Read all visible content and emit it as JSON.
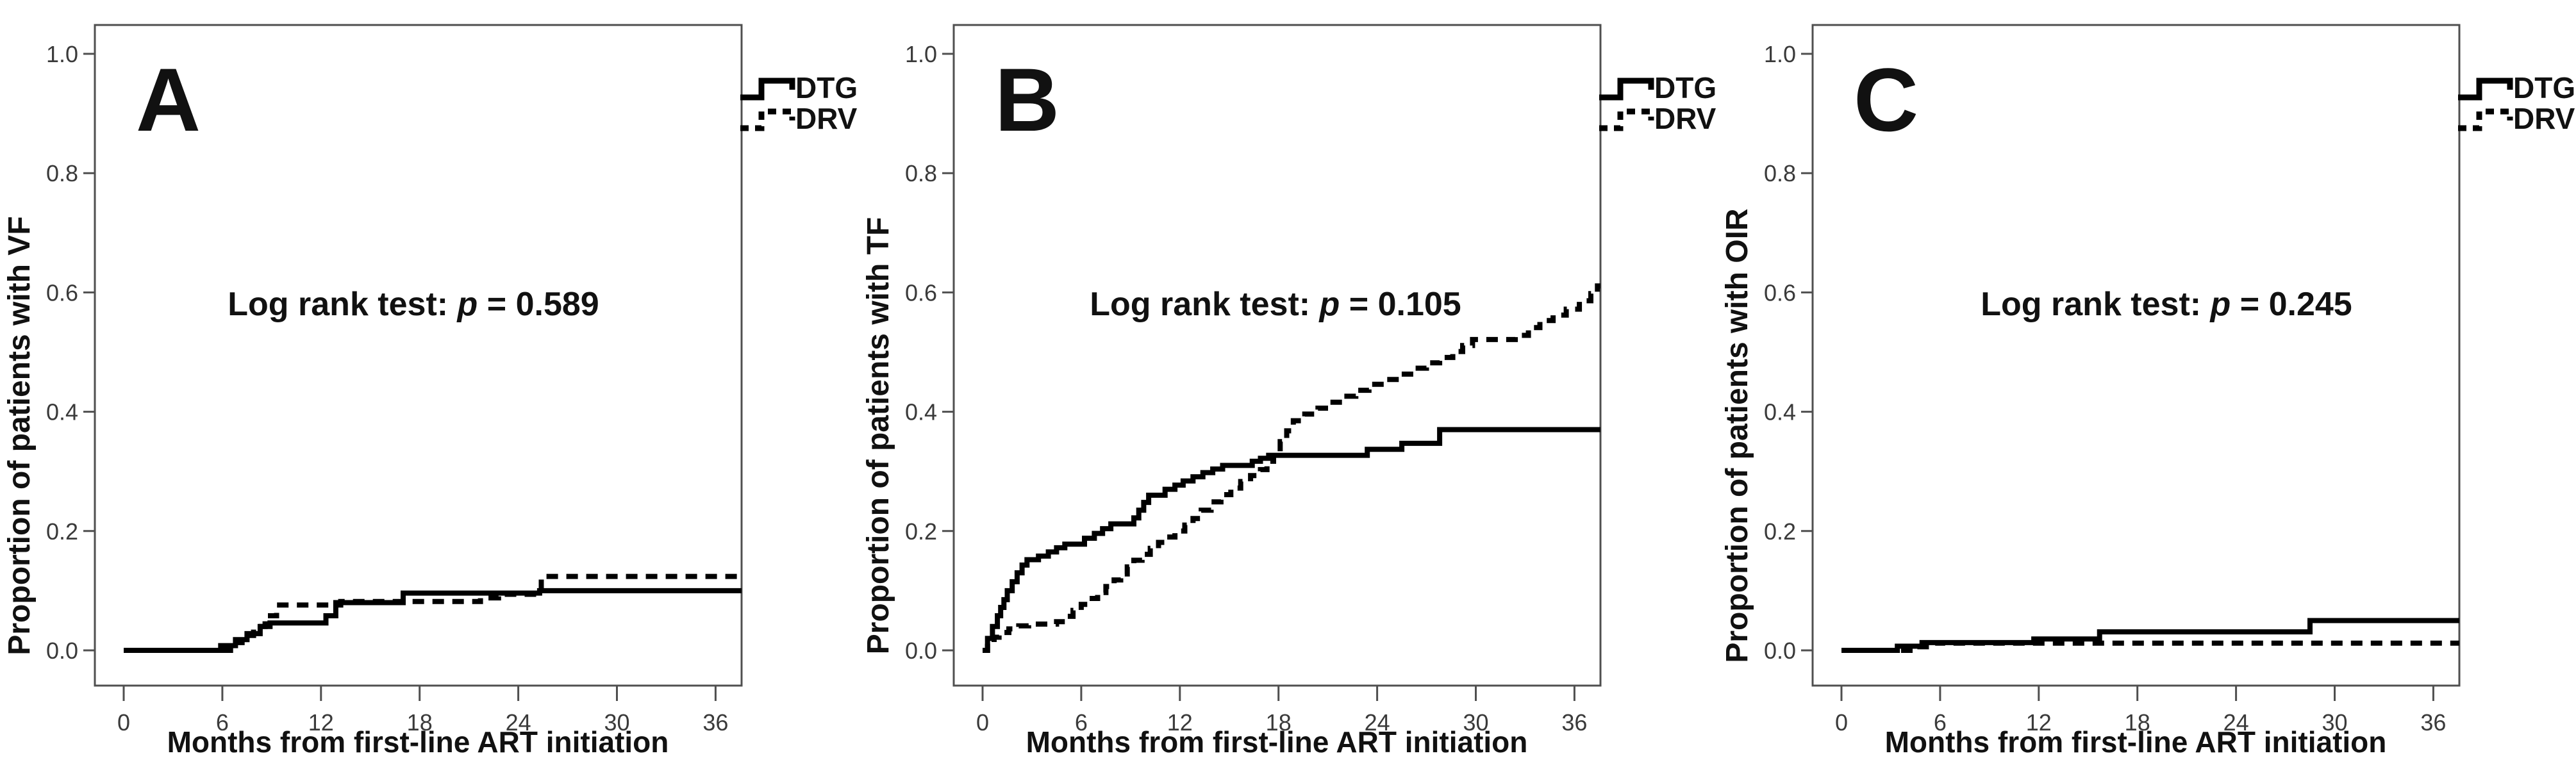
{
  "legend": {
    "items": [
      {
        "label": "DTG",
        "style": "solid"
      },
      {
        "label": "DRV",
        "style": "dashed"
      }
    ]
  },
  "colors": {
    "curve": "#000000",
    "axis": "#4f4f4f",
    "text": "#111111"
  },
  "chart_data": [
    {
      "type": "line",
      "subtype": "kaplan-meier-step",
      "panel_letter": "A",
      "xlabel": "Months from first-line ART initiation",
      "ylabel": "Proportion of patients with VF",
      "annotation": {
        "prefix": "Log rank test: ",
        "p_symbol": "p",
        "suffix": " = 0.589"
      },
      "x_ticks": [
        0,
        6,
        12,
        18,
        24,
        30,
        36
      ],
      "y_tick_labels": [
        "0.0",
        "0.2",
        "0.4",
        "0.6",
        "0.8",
        "1.0"
      ],
      "xlim": [
        0,
        37.6
      ],
      "ylim": [
        0,
        1.05
      ],
      "grid": false,
      "legend_position": "top-right-outside",
      "series": [
        {
          "name": "DTG",
          "style": "solid",
          "points": [
            [
              0,
              0
            ],
            [
              5.9,
              0.008
            ],
            [
              6.8,
              0.018
            ],
            [
              7.5,
              0.028
            ],
            [
              8.3,
              0.04
            ],
            [
              8.9,
              0.046
            ],
            [
              12.3,
              0.058
            ],
            [
              12.9,
              0.08
            ],
            [
              17,
              0.096
            ],
            [
              25.3,
              0.1
            ]
          ]
        },
        {
          "name": "DRV",
          "style": "dashed",
          "points": [
            [
              0,
              0
            ],
            [
              6.5,
              0.013
            ],
            [
              7.2,
              0.025
            ],
            [
              7.9,
              0.04
            ],
            [
              8.6,
              0.058
            ],
            [
              9.3,
              0.076
            ],
            [
              13.2,
              0.082
            ],
            [
              21.7,
              0.088
            ],
            [
              22.8,
              0.094
            ],
            [
              25.4,
              0.124
            ]
          ]
        }
      ]
    },
    {
      "type": "line",
      "subtype": "kaplan-meier-step",
      "panel_letter": "B",
      "xlabel": "Months from first-line ART initiation",
      "ylabel": "Proportion of patients with TF",
      "annotation": {
        "prefix": "Log rank test: ",
        "p_symbol": "p",
        "suffix": " = 0.105"
      },
      "x_ticks": [
        0,
        6,
        12,
        18,
        24,
        30,
        36
      ],
      "y_tick_labels": [
        "0.0",
        "0.2",
        "0.4",
        "0.6",
        "0.8",
        "1.0"
      ],
      "xlim": [
        0,
        37.6
      ],
      "ylim": [
        0,
        1.05
      ],
      "grid": false,
      "legend_position": "top-right-outside",
      "series": [
        {
          "name": "DTG",
          "style": "solid",
          "points": [
            [
              0,
              0
            ],
            [
              0.3,
              0.02
            ],
            [
              0.6,
              0.04
            ],
            [
              0.9,
              0.058
            ],
            [
              1.1,
              0.072
            ],
            [
              1.3,
              0.085
            ],
            [
              1.5,
              0.1
            ],
            [
              1.8,
              0.115
            ],
            [
              2.1,
              0.13
            ],
            [
              2.4,
              0.143
            ],
            [
              2.7,
              0.152
            ],
            [
              3.4,
              0.158
            ],
            [
              4,
              0.165
            ],
            [
              4.5,
              0.172
            ],
            [
              5,
              0.178
            ],
            [
              6.2,
              0.188
            ],
            [
              6.8,
              0.196
            ],
            [
              7.3,
              0.204
            ],
            [
              7.8,
              0.212
            ],
            [
              9.2,
              0.222
            ],
            [
              9.5,
              0.235
            ],
            [
              9.8,
              0.248
            ],
            [
              10.1,
              0.26
            ],
            [
              11.1,
              0.27
            ],
            [
              11.7,
              0.277
            ],
            [
              12.2,
              0.284
            ],
            [
              12.8,
              0.291
            ],
            [
              13.4,
              0.298
            ],
            [
              14,
              0.304
            ],
            [
              14.6,
              0.31
            ],
            [
              16.4,
              0.317
            ],
            [
              16.9,
              0.322
            ],
            [
              17.4,
              0.327
            ],
            [
              23.4,
              0.337
            ],
            [
              25.5,
              0.347
            ],
            [
              27.8,
              0.37
            ]
          ]
        },
        {
          "name": "DRV",
          "style": "dashed",
          "points": [
            [
              0,
              0
            ],
            [
              0.3,
              0.012
            ],
            [
              0.7,
              0.022
            ],
            [
              1,
              0.03
            ],
            [
              1.6,
              0.036
            ],
            [
              2.2,
              0.041
            ],
            [
              2.8,
              0.044
            ],
            [
              4.5,
              0.048
            ],
            [
              5,
              0.057
            ],
            [
              5.5,
              0.067
            ],
            [
              6,
              0.077
            ],
            [
              6.5,
              0.087
            ],
            [
              7,
              0.097
            ],
            [
              7.5,
              0.107
            ],
            [
              8,
              0.118
            ],
            [
              8.4,
              0.128
            ],
            [
              8.8,
              0.14
            ],
            [
              9.2,
              0.151
            ],
            [
              9.7,
              0.161
            ],
            [
              10.2,
              0.171
            ],
            [
              10.7,
              0.181
            ],
            [
              11.2,
              0.19
            ],
            [
              11.7,
              0.2
            ],
            [
              12.3,
              0.21
            ],
            [
              12.8,
              0.221
            ],
            [
              13.3,
              0.235
            ],
            [
              13.9,
              0.249
            ],
            [
              14.5,
              0.261
            ],
            [
              15.1,
              0.272
            ],
            [
              15.7,
              0.283
            ],
            [
              16.3,
              0.293
            ],
            [
              16.9,
              0.303
            ],
            [
              17.3,
              0.317
            ],
            [
              17.7,
              0.333
            ],
            [
              18.1,
              0.35
            ],
            [
              18.5,
              0.368
            ],
            [
              18.9,
              0.385
            ],
            [
              19.6,
              0.396
            ],
            [
              20.4,
              0.406
            ],
            [
              21.1,
              0.416
            ],
            [
              21.9,
              0.426
            ],
            [
              22.7,
              0.436
            ],
            [
              23.5,
              0.446
            ],
            [
              24.5,
              0.454
            ],
            [
              25.4,
              0.463
            ],
            [
              26.2,
              0.473
            ],
            [
              27,
              0.482
            ],
            [
              27.8,
              0.491
            ],
            [
              28.6,
              0.501
            ],
            [
              29.2,
              0.511
            ],
            [
              29.8,
              0.521
            ],
            [
              32.4,
              0.528
            ],
            [
              33.2,
              0.541
            ],
            [
              33.9,
              0.553
            ],
            [
              34.7,
              0.562
            ],
            [
              35.5,
              0.572
            ],
            [
              36.3,
              0.586
            ],
            [
              37,
              0.598
            ],
            [
              37.4,
              0.611
            ]
          ]
        }
      ]
    },
    {
      "type": "line",
      "subtype": "kaplan-meier-step",
      "panel_letter": "C",
      "xlabel": "Months from first-line ART initiation",
      "ylabel": "Proportion of patients with OIR",
      "annotation": {
        "prefix": "Log rank test: ",
        "p_symbol": "p",
        "suffix": " = 0.245"
      },
      "x_ticks": [
        0,
        6,
        12,
        18,
        24,
        30,
        36
      ],
      "y_tick_labels": [
        "0.0",
        "0.2",
        "0.4",
        "0.6",
        "0.8",
        "1.0"
      ],
      "xlim": [
        0,
        37.6
      ],
      "ylim": [
        0,
        1.05
      ],
      "grid": false,
      "legend_position": "top-right-outside",
      "series": [
        {
          "name": "DTG",
          "style": "solid",
          "points": [
            [
              0,
              0
            ],
            [
              3.4,
              0.007
            ],
            [
              4.9,
              0.013
            ],
            [
              11.7,
              0.019
            ],
            [
              15.7,
              0.031
            ],
            [
              28.5,
              0.05
            ]
          ]
        },
        {
          "name": "DRV",
          "style": "dashed",
          "points": [
            [
              0,
              0
            ],
            [
              4.4,
              0.006
            ],
            [
              5.7,
              0.012
            ]
          ]
        }
      ]
    }
  ]
}
